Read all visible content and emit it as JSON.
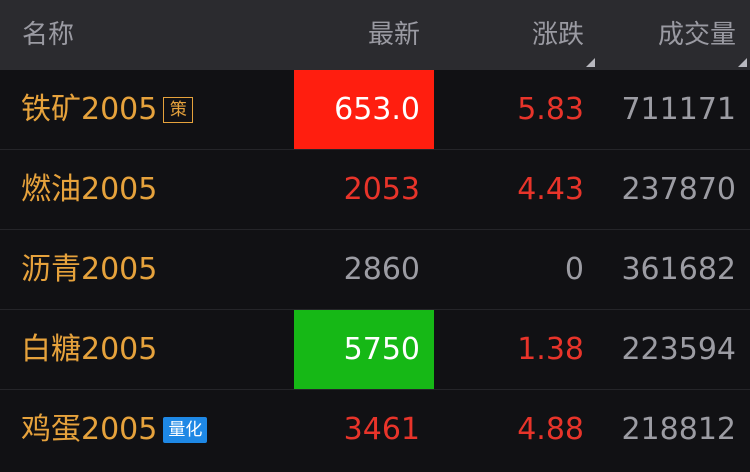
{
  "header": {
    "name_label": "名称",
    "last_label": "最新",
    "change_label": "涨跌",
    "volume_label": "成交量"
  },
  "rows": [
    {
      "name": "铁矿2005",
      "badge": "策",
      "badge_type": "policy",
      "last": "653.0",
      "last_state": "up-highlight",
      "change": "5.83",
      "change_state": "up",
      "volume": "711171"
    },
    {
      "name": "燃油2005",
      "badge": "",
      "badge_type": "",
      "last": "2053",
      "last_state": "up",
      "change": "4.43",
      "change_state": "up",
      "volume": "237870"
    },
    {
      "name": "沥青2005",
      "badge": "",
      "badge_type": "",
      "last": "2860",
      "last_state": "flat",
      "change": "0",
      "change_state": "flat",
      "volume": "361682"
    },
    {
      "name": "白糖2005",
      "badge": "",
      "badge_type": "",
      "last": "5750",
      "last_state": "down-highlight",
      "change": "1.38",
      "change_state": "up",
      "volume": "223594"
    },
    {
      "name": "鸡蛋2005",
      "badge": "量化",
      "badge_type": "quant",
      "last": "3461",
      "last_state": "up",
      "change": "4.88",
      "change_state": "up",
      "volume": "218812"
    }
  ],
  "colors": {
    "name": "#e6a23c",
    "up": "#e8342a",
    "flat": "#9c9ca3",
    "up_highlight_bg": "#ff1e0f",
    "down_highlight_bg": "#16b816",
    "quant_badge_bg": "#1e88e5",
    "header_bg": "#2b2b2f"
  }
}
